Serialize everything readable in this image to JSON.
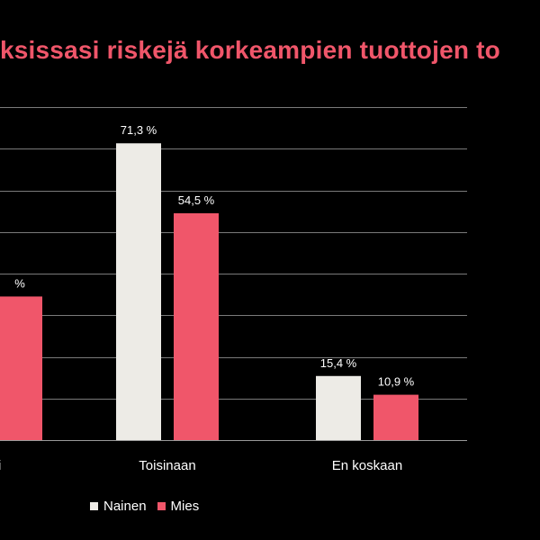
{
  "chart_data": {
    "type": "bar",
    "title": "ksissasi riskejä korkeampien tuottojen to",
    "categories": [
      "i",
      "Toisinaan",
      "En koskaan"
    ],
    "series": [
      {
        "name": "Nainen",
        "values": [
          null,
          71.3,
          15.4
        ],
        "labels": [
          "",
          "71,3 %",
          "15,4 %"
        ],
        "color": "#edebe6"
      },
      {
        "name": "Mies",
        "values": [
          34.5,
          54.5,
          10.9
        ],
        "labels": [
          "% ",
          "54,5 %",
          "10,9 %"
        ],
        "color": "#f0566a"
      }
    ],
    "ylim": [
      0,
      80
    ],
    "grid": true,
    "legend": "bottom",
    "colors": {
      "background": "#000000",
      "title": "#f0566a",
      "gridline": "#7a7a7a",
      "text": "#ffffff"
    }
  }
}
